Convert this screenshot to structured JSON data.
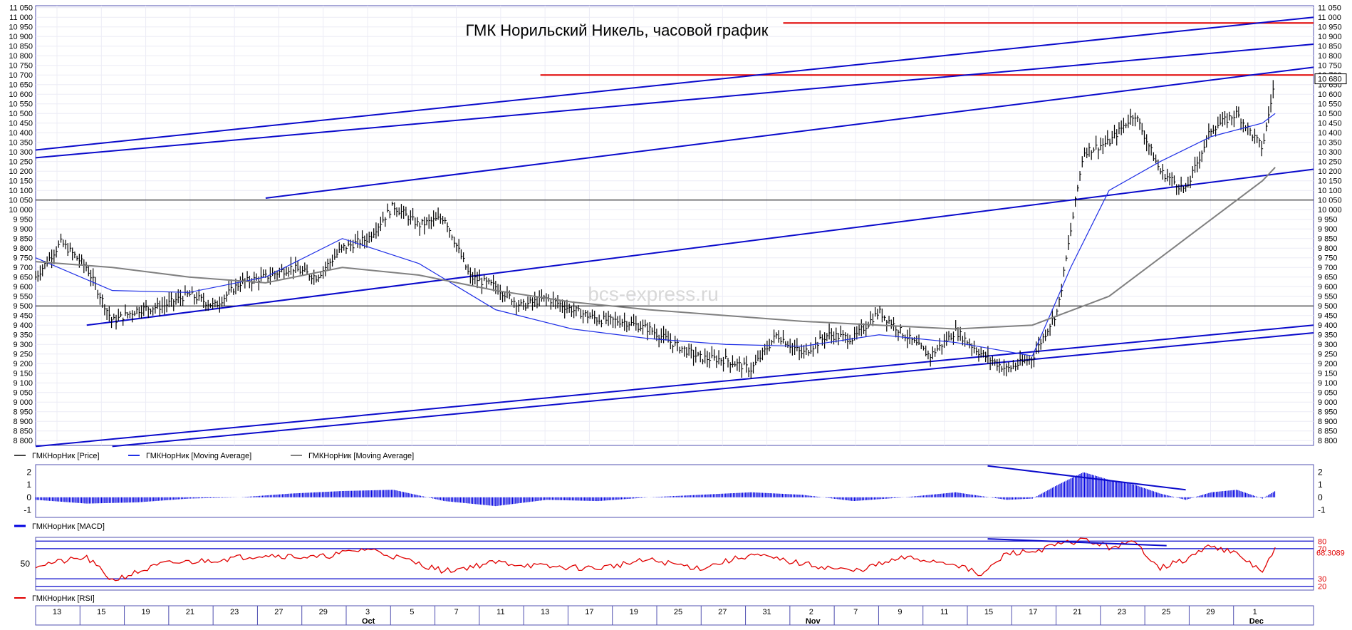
{
  "title": "ГМК Норильский Никель, часовой график",
  "watermark": "bcs-express.ru",
  "colors": {
    "price": "#000000",
    "ma_fast": "#1f2fe6",
    "ma_slow": "#808080",
    "trendline": "#0a0acb",
    "resistance": "#e00000",
    "macd": "#0000e0",
    "rsi": "#e00000",
    "grid": "#c8c8e8",
    "frame": "#5050b0"
  },
  "icons": {
    "legend_line": "line-swatch-icon"
  },
  "chart_data": [
    {
      "type": "line",
      "panel": "price",
      "title": "ГМК Норильский Никель, часовой график",
      "xlabel": "",
      "ylabel": "",
      "ylim": [
        8775,
        11060
      ],
      "yticks": [
        8800,
        8850,
        8900,
        8950,
        9000,
        9050,
        9100,
        9150,
        9200,
        9250,
        9300,
        9350,
        9400,
        9450,
        9500,
        9550,
        9600,
        9650,
        9700,
        9750,
        9800,
        9850,
        9900,
        9950,
        10000,
        10050,
        10100,
        10150,
        10200,
        10250,
        10300,
        10350,
        10400,
        10450,
        10500,
        10550,
        10600,
        10650,
        10700,
        10750,
        10800,
        10850,
        10900,
        10950,
        11000,
        11050
      ],
      "ytick_labels": [
        "8 800",
        "8 850",
        "8 900",
        "8 950",
        "9 000",
        "9 050",
        "9 100",
        "9 150",
        "9 200",
        "9 250",
        "9 300",
        "9 350",
        "9 400",
        "9 450",
        "9 500",
        "9 550",
        "9 600",
        "9 650",
        "9 700",
        "9 750",
        "9 800",
        "9 850",
        "9 900",
        "9 950",
        "10 000",
        "10 050",
        "10 100",
        "10 150",
        "10 200",
        "10 250",
        "10 300",
        "10 350",
        "10 400",
        "10 450",
        "10 500",
        "10 550",
        "10 600",
        "10 650",
        "10 700",
        "10 750",
        "10 800",
        "10 850",
        "10 900",
        "10 950",
        "11 000",
        "11 050"
      ],
      "last_price_label": "10 680",
      "last_price": 10680,
      "legend": [
        "ГМКНорНик [Price]",
        "ГМКНорНик [Moving Average]",
        "ГМКНорНик [Moving Average]"
      ],
      "horizontal_levels": [
        10050,
        9500
      ],
      "resistance_levels": [
        10700,
        10970
      ],
      "series": [
        {
          "name": "ГМКНорНик [Price]",
          "kind": "ohlc-bars",
          "x": [
            0,
            2,
            4,
            6,
            8,
            10,
            12,
            14,
            16,
            18,
            20,
            22,
            24,
            26,
            28,
            30,
            32,
            34,
            36,
            38,
            40,
            42,
            44,
            46,
            48,
            50,
            52,
            54,
            56,
            58,
            60,
            62,
            64,
            66,
            68,
            70,
            72,
            74,
            76,
            78,
            80,
            82,
            84,
            86,
            88,
            90,
            92,
            94,
            96,
            97
          ],
          "values": [
            9650,
            9830,
            9700,
            9420,
            9480,
            9500,
            9560,
            9500,
            9620,
            9650,
            9700,
            9650,
            9800,
            9850,
            10020,
            9920,
            9960,
            9650,
            9600,
            9500,
            9540,
            9480,
            9430,
            9420,
            9380,
            9300,
            9230,
            9220,
            9170,
            9350,
            9250,
            9350,
            9330,
            9470,
            9350,
            9240,
            9370,
            9250,
            9170,
            9230,
            9480,
            10300,
            10350,
            10500,
            10200,
            10100,
            10420,
            10500,
            10320,
            10680
          ]
        },
        {
          "name": "ГМКНорНик [Moving Average]",
          "kind": "line",
          "x": [
            0,
            6,
            12,
            18,
            24,
            30,
            36,
            42,
            48,
            54,
            60,
            66,
            72,
            78,
            81,
            84,
            88,
            92,
            96,
            97
          ],
          "values": [
            9750,
            9580,
            9570,
            9650,
            9850,
            9720,
            9480,
            9380,
            9330,
            9300,
            9290,
            9350,
            9310,
            9240,
            9700,
            10100,
            10250,
            10380,
            10450,
            10500
          ]
        },
        {
          "name": "ГМКНорНик [Moving Average]",
          "kind": "line",
          "x": [
            0,
            6,
            12,
            18,
            24,
            30,
            36,
            42,
            48,
            54,
            60,
            66,
            72,
            78,
            84,
            90,
            96,
            97
          ],
          "values": [
            9730,
            9700,
            9650,
            9620,
            9700,
            9660,
            9580,
            9520,
            9480,
            9450,
            9420,
            9400,
            9380,
            9400,
            9550,
            9850,
            10150,
            10220
          ]
        }
      ]
    },
    {
      "type": "area",
      "panel": "macd",
      "ylim": [
        -1.6,
        2.6
      ],
      "yticks": [
        -1,
        0,
        1,
        2
      ],
      "ytick_labels": [
        "-1",
        "0",
        "1",
        "2"
      ],
      "legend": [
        "ГМКНорНик [MACD]"
      ],
      "series": [
        {
          "name": "ГМКНорНик [MACD]",
          "x": [
            0,
            4,
            8,
            12,
            16,
            20,
            24,
            28,
            32,
            36,
            40,
            44,
            48,
            52,
            56,
            60,
            64,
            68,
            72,
            74,
            76,
            78,
            80,
            82,
            84,
            86,
            88,
            90,
            92,
            94,
            96,
            97
          ],
          "values": [
            -0.2,
            -0.5,
            -0.4,
            -0.1,
            0.0,
            0.3,
            0.5,
            0.6,
            -0.3,
            -0.7,
            -0.2,
            -0.3,
            0.0,
            0.2,
            0.4,
            0.2,
            -0.3,
            0.0,
            0.4,
            0.1,
            -0.2,
            -0.1,
            1.0,
            2.0,
            1.4,
            1.0,
            0.3,
            -0.2,
            0.4,
            0.6,
            -0.1,
            0.5
          ]
        }
      ]
    },
    {
      "type": "line",
      "panel": "rsi",
      "ylim": [
        15,
        85
      ],
      "levels": [
        20,
        30,
        70,
        80
      ],
      "level_labels": [
        "20",
        "30",
        "70",
        "80"
      ],
      "mid_label": "50",
      "last_value_label": "68.3089",
      "legend": [
        "ГМКНорНик [RSI]"
      ],
      "series": [
        {
          "name": "ГМКНорНик [RSI]",
          "x": [
            0,
            4,
            6,
            10,
            14,
            18,
            22,
            26,
            28,
            32,
            36,
            40,
            44,
            48,
            52,
            56,
            60,
            64,
            68,
            72,
            74,
            76,
            78,
            80,
            82,
            84,
            86,
            88,
            90,
            92,
            94,
            96,
            97
          ],
          "values": [
            48,
            58,
            28,
            50,
            55,
            62,
            58,
            70,
            60,
            40,
            52,
            46,
            44,
            55,
            44,
            62,
            50,
            40,
            58,
            50,
            34,
            64,
            66,
            75,
            82,
            72,
            78,
            45,
            55,
            75,
            62,
            40,
            68.3
          ]
        }
      ]
    }
  ],
  "x_axis": {
    "day_labels": [
      "13",
      "15",
      "19",
      "21",
      "23",
      "27",
      "29",
      "3",
      "5",
      "7",
      "11",
      "13",
      "17",
      "19",
      "25",
      "27",
      "31",
      "2",
      "7",
      "9",
      "11",
      "15",
      "17",
      "21",
      "23",
      "25",
      "29",
      "1"
    ],
    "month_labels": [
      "Oct",
      "Nov",
      "Dec"
    ]
  }
}
